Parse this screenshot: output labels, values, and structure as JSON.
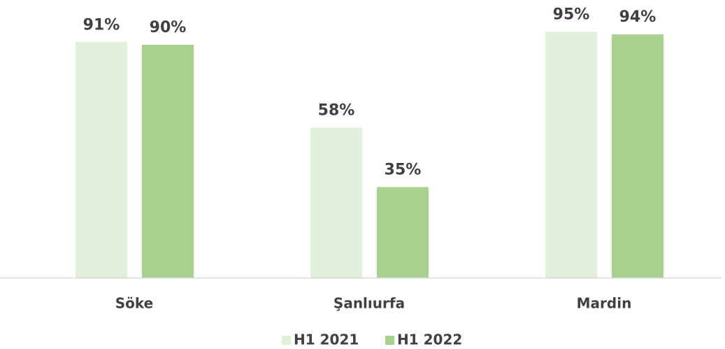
{
  "chart_data": {
    "type": "bar",
    "categories": [
      "Söke",
      "Şanlıurfa",
      "Mardin"
    ],
    "series": [
      {
        "name": "H1 2021",
        "color": "#e2efda",
        "values": [
          91,
          58,
          95
        ],
        "value_labels": [
          "91%",
          "58%",
          "95%"
        ]
      },
      {
        "name": "H1 2022",
        "color": "#a9d18e",
        "values": [
          90,
          35,
          94
        ],
        "value_labels": [
          "90%",
          "35%",
          "94%"
        ]
      }
    ],
    "ylim": [
      0,
      100
    ]
  }
}
